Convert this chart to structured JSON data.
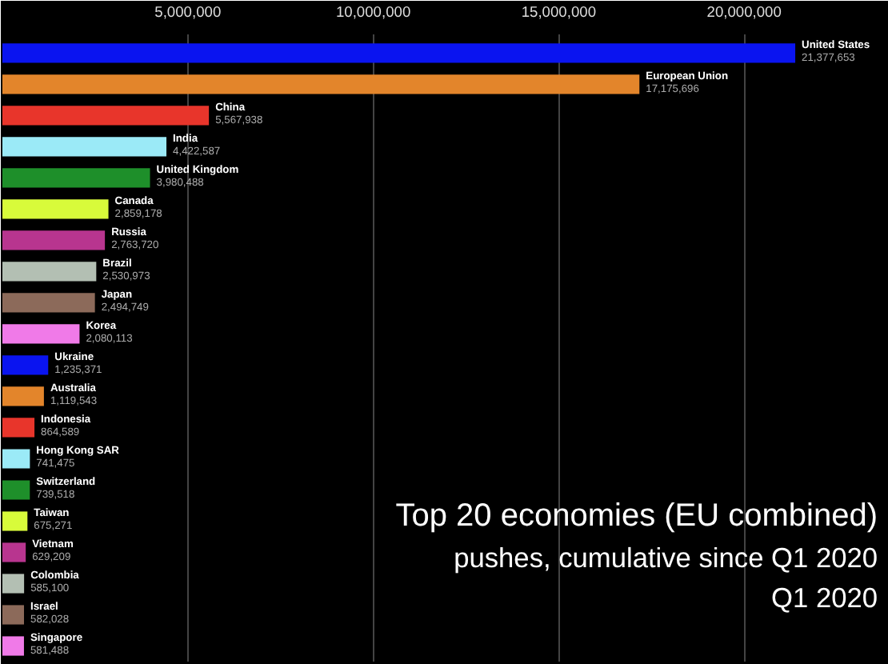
{
  "chart_data": {
    "type": "bar",
    "orientation": "horizontal",
    "title": "Top 20 economies (EU combined)",
    "subtitle": "pushes, cumulative since Q1 2020",
    "annotations": [
      "Q1 2020"
    ],
    "categories": [
      "United States",
      "European Union",
      "China",
      "India",
      "United Kingdom",
      "Canada",
      "Russia",
      "Brazil",
      "Japan",
      "Korea",
      "Ukraine",
      "Australia",
      "Indonesia",
      "Hong Kong SAR",
      "Switzerland",
      "Taiwan",
      "Vietnam",
      "Colombia",
      "Israel",
      "Singapore"
    ],
    "values": [
      21377653,
      17175696,
      5567938,
      4422587,
      3980488,
      2859178,
      2763720,
      2530973,
      2494749,
      2080113,
      1235371,
      1119543,
      864589,
      741475,
      739518,
      675271,
      629209,
      585100,
      582028,
      581488
    ],
    "colors": [
      "#0a14f0",
      "#e3852b",
      "#e8352b",
      "#9beaf7",
      "#1e8f2a",
      "#d8fb3a",
      "#b8358f",
      "#b3bfb3",
      "#8c6a5a",
      "#f07ae8",
      "#0a14f0",
      "#e3852b",
      "#e8352b",
      "#9beaf7",
      "#1e8f2a",
      "#d8fb3a",
      "#b8358f",
      "#b3bfb3",
      "#8c6a5a",
      "#f07ae8"
    ],
    "xlim": [
      0,
      23900000
    ],
    "xticks": [
      {
        "value": 5000000,
        "label": "5,000,000"
      },
      {
        "value": 10000000,
        "label": "10,000,000"
      },
      {
        "value": 15000000,
        "label": "15,000,000"
      },
      {
        "value": 20000000,
        "label": "20,000,000"
      }
    ],
    "value_labels": [
      "21,377,653",
      "17,175,696",
      "5,567,938",
      "4,422,587",
      "3,980,488",
      "2,859,178",
      "2,763,720",
      "2,530,973",
      "2,494,749",
      "2,080,113",
      "1,235,371",
      "1,119,543",
      "864,589",
      "741,475",
      "739,518",
      "675,271",
      "629,209",
      "585,100",
      "582,028",
      "581,488"
    ],
    "grid": "x"
  }
}
